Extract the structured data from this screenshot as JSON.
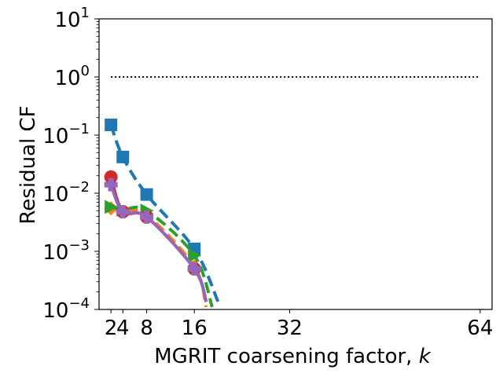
{
  "chart_data": {
    "type": "line",
    "yscale": "log",
    "xlabel": "MGRIT coarsening factor, ",
    "xlabel_italic": "k",
    "ylabel": "Residual CF",
    "xlim": [
      0,
      66
    ],
    "ylim_exponent": [
      -4,
      1
    ],
    "xticks": [
      2,
      4,
      8,
      16,
      32,
      64
    ],
    "yticks": [
      {
        "value": 10,
        "base": "10",
        "exp": "1"
      },
      {
        "value": 1,
        "base": "10",
        "exp": "0"
      },
      {
        "value": 0.1,
        "base": "10",
        "exp": "−1"
      },
      {
        "value": 0.01,
        "base": "10",
        "exp": "−2"
      },
      {
        "value": 0.001,
        "base": "10",
        "exp": "−3"
      },
      {
        "value": 0.0001,
        "base": "10",
        "exp": "−4"
      }
    ],
    "reference_line": {
      "x": [
        2,
        64
      ],
      "y": [
        1,
        1
      ],
      "color": "#000000",
      "style": "dotted"
    },
    "series": [
      {
        "name": "square",
        "color": "#1f77b4",
        "marker": "square",
        "dashed": true,
        "points": [
          [
            2,
            0.15
          ],
          [
            4,
            0.042
          ],
          [
            8,
            0.0095
          ],
          [
            16,
            0.0011
          ],
          [
            20,
            0.000135
          ]
        ]
      },
      {
        "name": "diamond",
        "color": "#ff7f0e",
        "marker": "diamond",
        "dashed": true,
        "points": [
          [
            2,
            0.0055
          ],
          [
            4,
            0.0048
          ],
          [
            8,
            0.0042
          ],
          [
            16,
            0.00055
          ],
          [
            18,
            0.00011
          ]
        ]
      },
      {
        "name": "triangle-right",
        "color": "#2ca02c",
        "marker": "triangle-right",
        "dashed": true,
        "points": [
          [
            2,
            0.0058
          ],
          [
            4,
            0.0052
          ],
          [
            8,
            0.005
          ],
          [
            16,
            0.00085
          ],
          [
            19,
            0.00011
          ]
        ]
      },
      {
        "name": "circle",
        "color": "#d62728",
        "marker": "circle",
        "dashed": false,
        "points": [
          [
            2,
            0.019
          ],
          [
            4,
            0.0048
          ],
          [
            8,
            0.0039
          ],
          [
            16,
            0.0005
          ],
          [
            18,
            0.000135
          ]
        ]
      },
      {
        "name": "plus",
        "color": "#9467bd",
        "marker": "plus",
        "dashed": false,
        "points": [
          [
            2,
            0.014
          ],
          [
            4,
            0.0048
          ],
          [
            8,
            0.0039
          ],
          [
            16,
            0.0005
          ],
          [
            18,
            0.000135
          ]
        ]
      }
    ]
  }
}
